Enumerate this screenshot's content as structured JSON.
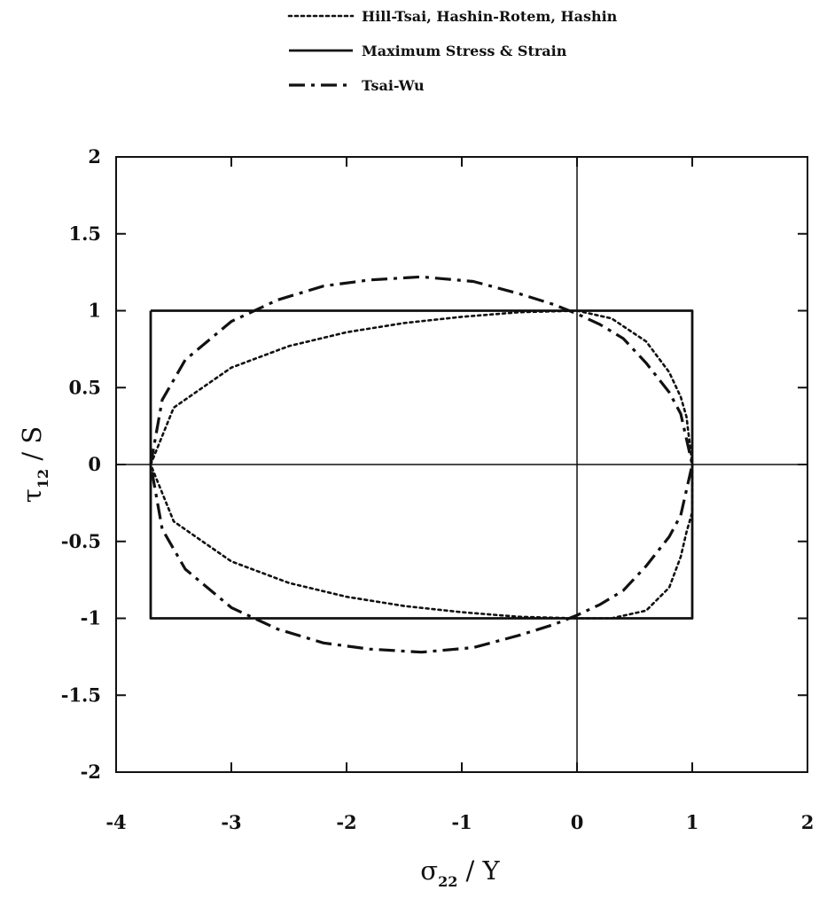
{
  "chart_data": {
    "type": "line",
    "title": "",
    "xlabel": {
      "symbol": "σ",
      "subscript": "22",
      "suffix": " / Y"
    },
    "ylabel": {
      "symbol": "τ",
      "subscript": "12",
      "suffix": " / S"
    },
    "xlim": [
      -4,
      2
    ],
    "ylim": [
      -2,
      2
    ],
    "xticks": [
      -4,
      -3,
      -2,
      -1,
      0,
      1,
      2
    ],
    "yticks": [
      -2,
      -1.5,
      -1,
      -0.5,
      0,
      0.5,
      1,
      1.5,
      2
    ],
    "xtick_labels": [
      "-4",
      "-3",
      "-2",
      "-1",
      "0",
      "1",
      "2"
    ],
    "ytick_labels": [
      "-2",
      "-1.5",
      "-1",
      "-0.5",
      "0",
      "0.5",
      "1",
      "1.5",
      "2"
    ],
    "grid": false,
    "zero_lines": true,
    "legend_position": "top",
    "series": [
      {
        "name": "Hill-Tsai, Hashin-Rotem, Hashin",
        "style": "dotted",
        "color": "#111111",
        "x": [
          -3.7,
          -3.5,
          -3.0,
          -2.5,
          -2.0,
          -1.5,
          -1.0,
          -0.5,
          0.0,
          0.3,
          0.6,
          0.8,
          0.9,
          0.95,
          1.0,
          1.0,
          0.95,
          0.9,
          0.8,
          0.6,
          0.3,
          0.0,
          -0.5,
          -1.0,
          -1.5,
          -2.0,
          -2.5,
          -3.0,
          -3.5,
          -3.7
        ],
        "y": [
          0.0,
          0.37,
          0.63,
          0.77,
          0.86,
          0.92,
          0.96,
          0.99,
          1.0,
          0.95,
          0.8,
          0.6,
          0.44,
          0.31,
          0.0,
          -0.31,
          -0.44,
          -0.6,
          -0.8,
          -0.95,
          -1.0,
          -1.0,
          -0.99,
          -0.96,
          -0.92,
          -0.86,
          -0.77,
          -0.63,
          -0.37,
          0.0
        ]
      },
      {
        "name": "Maximum Stress & Strain",
        "style": "solid",
        "color": "#111111",
        "x": [
          -3.7,
          1.0,
          1.0,
          -3.7,
          -3.7
        ],
        "y": [
          1.0,
          1.0,
          -1.0,
          -1.0,
          1.0
        ]
      },
      {
        "name": "Tsai-Wu",
        "style": "dash-dot",
        "color": "#111111",
        "x": [
          -3.7,
          -3.6,
          -3.4,
          -3.0,
          -2.6,
          -2.2,
          -1.8,
          -1.35,
          -0.9,
          -0.5,
          -0.2,
          0.0,
          0.2,
          0.4,
          0.6,
          0.8,
          0.9,
          1.0,
          0.9,
          0.8,
          0.6,
          0.4,
          0.2,
          0.0,
          -0.2,
          -0.5,
          -0.9,
          -1.35,
          -1.8,
          -2.2,
          -2.6,
          -3.0,
          -3.4,
          -3.6,
          -3.7
        ],
        "y": [
          0.0,
          0.42,
          0.68,
          0.93,
          1.07,
          1.16,
          1.2,
          1.22,
          1.19,
          1.11,
          1.04,
          0.98,
          0.91,
          0.82,
          0.66,
          0.47,
          0.33,
          0.0,
          -0.33,
          -0.47,
          -0.66,
          -0.82,
          -0.91,
          -0.98,
          -1.04,
          -1.11,
          -1.19,
          -1.22,
          -1.2,
          -1.16,
          -1.07,
          -0.93,
          -0.68,
          -0.42,
          0.0
        ]
      }
    ]
  }
}
